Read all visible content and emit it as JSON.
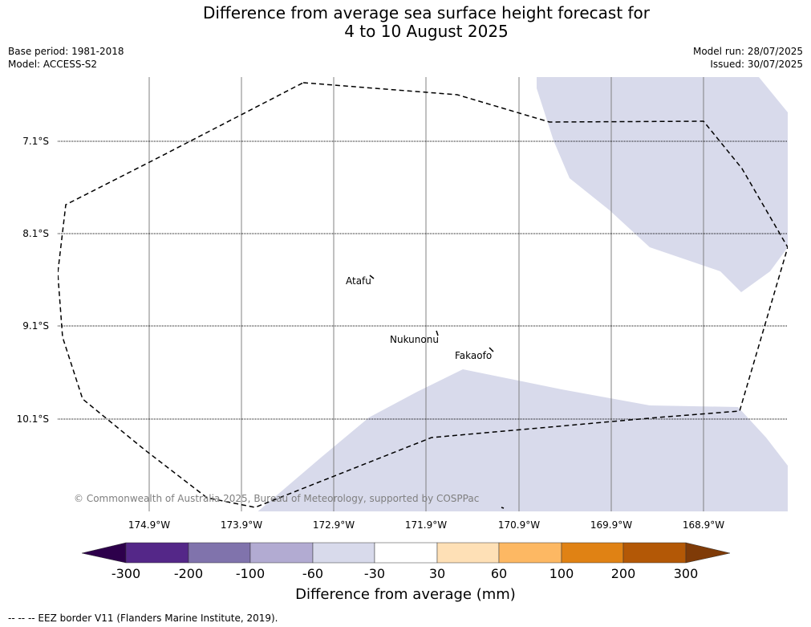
{
  "title_line1": "Difference from average sea surface height forecast for",
  "title_line2": "4 to 10 August 2025",
  "meta": {
    "base_period": "Base period: 1981-2018",
    "model": "Model: ACCESS-S2",
    "model_run": "Model run: 28/07/2025",
    "issued": "Issued: 30/07/2025"
  },
  "lat_labels": [
    "7.1°S",
    "8.1°S",
    "9.1°S",
    "10.1°S"
  ],
  "lon_labels": [
    "174.9°W",
    "173.9°W",
    "172.9°W",
    "171.9°W",
    "170.9°W",
    "169.9°W",
    "168.9°W"
  ],
  "places": [
    "Atafu",
    "Nukunonu",
    "Fakaofo"
  ],
  "copyright": "© Commonwealth of Australia 2025, Bureau of Meteorology, supported by COSPPac",
  "colorbar": {
    "ticks": [
      "-300",
      "-200",
      "-100",
      "-60",
      "-30",
      "30",
      "60",
      "100",
      "200",
      "300"
    ],
    "colors": [
      "#2d004b",
      "#542788",
      "#8073ac",
      "#b2abd2",
      "#d8daeb",
      "#ffffff",
      "#fee0b6",
      "#fdb863",
      "#e08214",
      "#b35806",
      "#7f3b08"
    ],
    "label": "Difference from average (mm)"
  },
  "footnote": "--  --  -- EEZ border V11 (Flanders Marine Institute, 2019)."
}
